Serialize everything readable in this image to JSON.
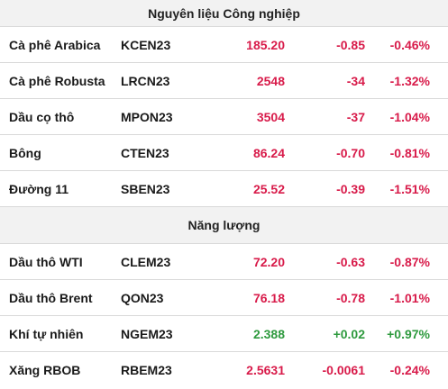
{
  "colors": {
    "negative": "#d81b4a",
    "positive": "#2e9a3e",
    "header_bg": "#f2f2f2",
    "border": "#d9d9d9"
  },
  "sections": [
    {
      "title": "Nguyên liệu Công nghiệp",
      "rows": [
        {
          "name": "Cà phê Arabica",
          "code": "KCEN23",
          "price": "185.20",
          "change": "-0.85",
          "pct": "-0.46%",
          "trend": "neg"
        },
        {
          "name": "Cà phê Robusta",
          "code": "LRCN23",
          "price": "2548",
          "change": "-34",
          "pct": "-1.32%",
          "trend": "neg"
        },
        {
          "name": "Dầu cọ thô",
          "code": "MPON23",
          "price": "3504",
          "change": "-37",
          "pct": "-1.04%",
          "trend": "neg"
        },
        {
          "name": "Bông",
          "code": "CTEN23",
          "price": "86.24",
          "change": "-0.70",
          "pct": "-0.81%",
          "trend": "neg"
        },
        {
          "name": "Đường 11",
          "code": "SBEN23",
          "price": "25.52",
          "change": "-0.39",
          "pct": "-1.51%",
          "trend": "neg"
        }
      ]
    },
    {
      "title": "Năng lượng",
      "rows": [
        {
          "name": "Dầu thô WTI",
          "code": "CLEM23",
          "price": "72.20",
          "change": "-0.63",
          "pct": "-0.87%",
          "trend": "neg"
        },
        {
          "name": "Dầu thô Brent",
          "code": "QON23",
          "price": "76.18",
          "change": "-0.78",
          "pct": "-1.01%",
          "trend": "neg"
        },
        {
          "name": "Khí tự nhiên",
          "code": "NGEM23",
          "price": "2.388",
          "change": "+0.02",
          "pct": "+0.97%",
          "trend": "pos"
        },
        {
          "name": "Xăng RBOB",
          "code": "RBEM23",
          "price": "2.5631",
          "change": "-0.0061",
          "pct": "-0.24%",
          "trend": "neg"
        }
      ]
    }
  ]
}
